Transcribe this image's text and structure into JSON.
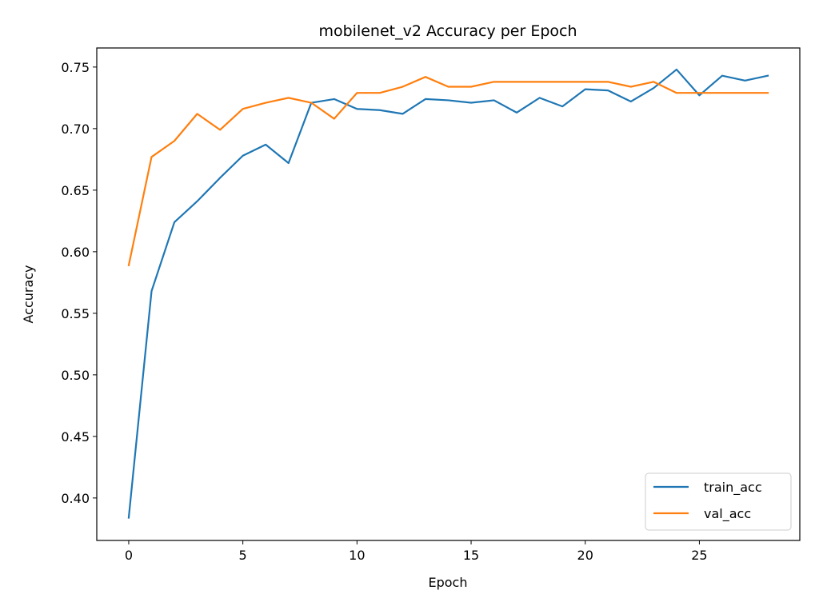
{
  "chart_data": {
    "type": "line",
    "title": "mobilenet_v2 Accuracy per Epoch",
    "xlabel": "Epoch",
    "ylabel": "Accuracy",
    "xlim": [
      -1.4,
      29.4
    ],
    "ylim": [
      0.3655,
      0.7655
    ],
    "xticks": [
      0,
      5,
      10,
      15,
      20,
      25
    ],
    "yticks": [
      0.4,
      0.45,
      0.5,
      0.55,
      0.6,
      0.65,
      0.7,
      0.75
    ],
    "grid": false,
    "legend_position": "lower-right",
    "x": [
      0,
      1,
      2,
      3,
      4,
      5,
      6,
      7,
      8,
      9,
      10,
      11,
      12,
      13,
      14,
      15,
      16,
      17,
      18,
      19,
      20,
      21,
      22,
      23,
      24,
      25,
      26,
      27,
      28
    ],
    "series": [
      {
        "name": "train_acc",
        "color": "#1f77b4",
        "values": [
          0.384,
          0.568,
          0.624,
          0.641,
          0.66,
          0.678,
          0.687,
          0.672,
          0.721,
          0.724,
          0.716,
          0.715,
          0.712,
          0.724,
          0.723,
          0.721,
          0.723,
          0.713,
          0.725,
          0.718,
          0.732,
          0.731,
          0.722,
          0.733,
          0.748,
          0.727,
          0.743,
          0.739,
          0.743
        ]
      },
      {
        "name": "val_acc",
        "color": "#ff7f0e",
        "values": [
          0.589,
          0.677,
          0.69,
          0.712,
          0.699,
          0.716,
          0.721,
          0.725,
          0.721,
          0.708,
          0.729,
          0.729,
          0.734,
          0.742,
          0.734,
          0.734,
          0.738,
          0.738,
          0.738,
          0.738,
          0.738,
          0.738,
          0.734,
          0.738,
          0.729,
          0.729,
          0.729,
          0.729,
          0.729
        ]
      }
    ]
  }
}
